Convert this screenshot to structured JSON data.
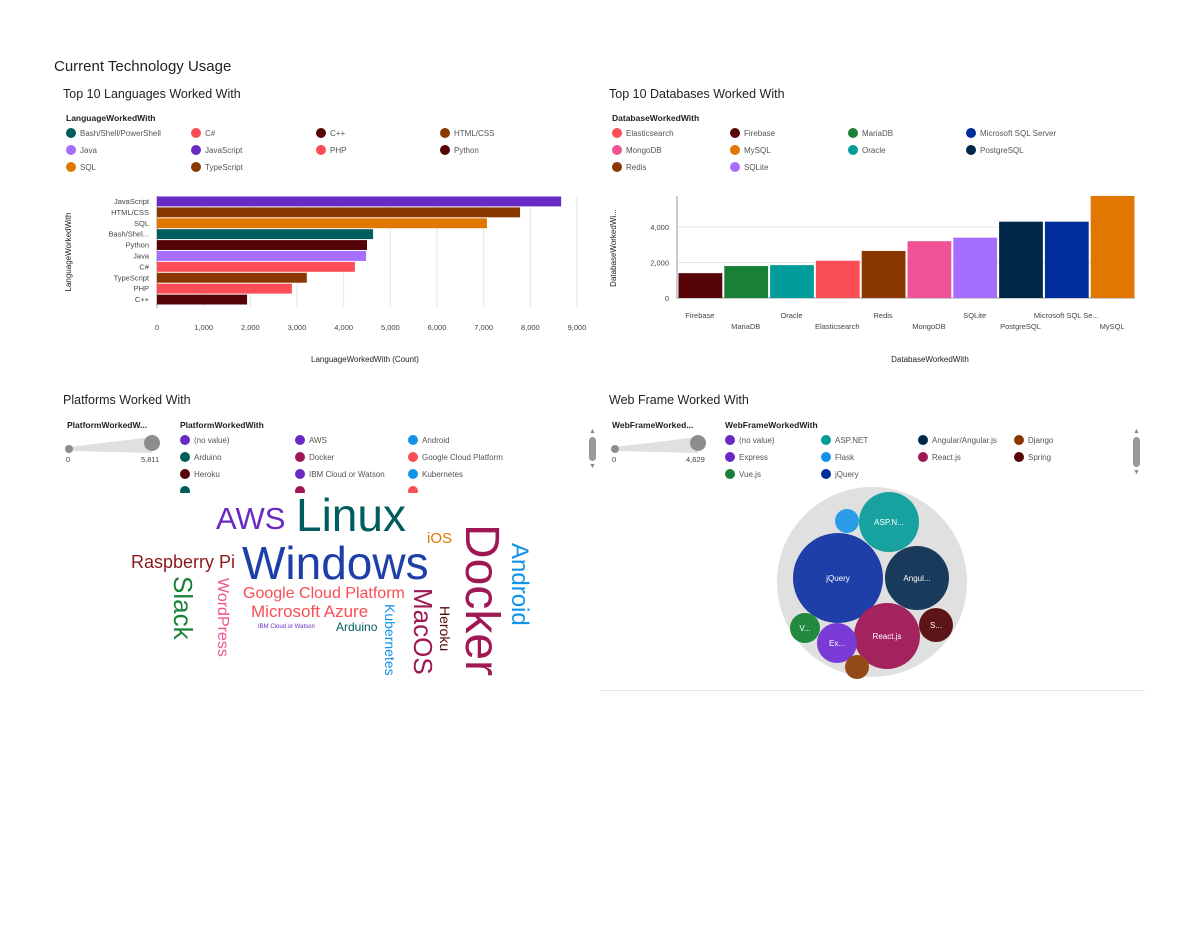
{
  "page_title": "Current Technology Usage",
  "languages": {
    "title": "Top 10 Languages Worked With",
    "legend_title": "LanguageWorkedWith",
    "legend": [
      {
        "label": "Bash/Shell/PowerShell",
        "color": "#005d5d"
      },
      {
        "label": "C#",
        "color": "#fa4d56"
      },
      {
        "label": "C++",
        "color": "#570408"
      },
      {
        "label": "HTML/CSS",
        "color": "#8a3800"
      },
      {
        "label": "Java",
        "color": "#a56eff"
      },
      {
        "label": "JavaScript",
        "color": "#6929c4"
      },
      {
        "label": "PHP",
        "color": "#fa4d56"
      },
      {
        "label": "Python",
        "color": "#570408"
      },
      {
        "label": "SQL",
        "color": "#e07700"
      },
      {
        "label": "TypeScript",
        "color": "#8a3800"
      }
    ]
  },
  "databases": {
    "title": "Top 10 Databases Worked With",
    "legend_title": "DatabaseWorkedWith",
    "legend": [
      {
        "label": "Elasticsearch",
        "color": "#fa4d56"
      },
      {
        "label": "Firebase",
        "color": "#570408"
      },
      {
        "label": "MariaDB",
        "color": "#198038"
      },
      {
        "label": "Microsoft SQL Server",
        "color": "#002d9c"
      },
      {
        "label": "MongoDB",
        "color": "#ee5396"
      },
      {
        "label": "MySQL",
        "color": "#e07700"
      },
      {
        "label": "Oracle",
        "color": "#009d9a"
      },
      {
        "label": "PostgreSQL",
        "color": "#012749"
      },
      {
        "label": "Redis",
        "color": "#8a3800"
      },
      {
        "label": "SQLite",
        "color": "#a56eff"
      }
    ]
  },
  "platforms": {
    "title": "Platforms Worked With",
    "size_title": "PlatformWorkedW...",
    "size_min": "0",
    "size_max": "5,811",
    "legend_title": "PlatformWorkedWith",
    "legend": [
      {
        "label": "(no value)",
        "color": "#6929c4"
      },
      {
        "label": "AWS",
        "color": "#6929c4"
      },
      {
        "label": "Android",
        "color": "#1192e8"
      },
      {
        "label": "Arduino",
        "color": "#005d5d"
      },
      {
        "label": "Docker",
        "color": "#9f1853"
      },
      {
        "label": "Google Cloud Platform",
        "color": "#fa4d56"
      },
      {
        "label": "Heroku",
        "color": "#570408"
      },
      {
        "label": "IBM Cloud or Watson",
        "color": "#6929c4"
      },
      {
        "label": "Kubernetes",
        "color": "#1192e8"
      }
    ],
    "words": [
      {
        "text": "AWS",
        "color": "#6929c4"
      },
      {
        "text": "Linux",
        "color": "#005d5d"
      },
      {
        "text": "Windows",
        "color": "#1f3fa8"
      },
      {
        "text": "iOS",
        "color": "#e07700"
      },
      {
        "text": "Docker",
        "color": "#9f1853"
      },
      {
        "text": "Android",
        "color": "#1192e8"
      },
      {
        "text": "Raspberry Pi",
        "color": "#8a1a1a"
      },
      {
        "text": "Slack",
        "color": "#198038"
      },
      {
        "text": "WordPress",
        "color": "#ee5396"
      },
      {
        "text": "Google Cloud Platform",
        "color": "#fa4d56"
      },
      {
        "text": "Microsoft Azure",
        "color": "#fa4d56"
      },
      {
        "text": "IBM Cloud or Watson",
        "color": "#6929c4"
      },
      {
        "text": "Arduino",
        "color": "#005d5d"
      },
      {
        "text": "Kubernetes",
        "color": "#1192e8"
      },
      {
        "text": "MacOS",
        "color": "#9f1853"
      },
      {
        "text": "Heroku",
        "color": "#570408"
      }
    ]
  },
  "webframes": {
    "title": "Web Frame Worked With",
    "size_title": "WebFrameWorked...",
    "size_min": "0",
    "size_max": "4,629",
    "legend_title": "WebFrameWorkedWith",
    "legend": [
      {
        "label": "(no value)",
        "color": "#6929c4"
      },
      {
        "label": "ASP.NET",
        "color": "#009d9a"
      },
      {
        "label": "Angular/Angular.js",
        "color": "#012749"
      },
      {
        "label": "Django",
        "color": "#8a3800"
      },
      {
        "label": "Express",
        "color": "#6929c4"
      },
      {
        "label": "Flask",
        "color": "#1192e8"
      },
      {
        "label": "React.js",
        "color": "#9f1853"
      },
      {
        "label": "Spring",
        "color": "#570408"
      },
      {
        "label": "Vue.js",
        "color": "#198038"
      },
      {
        "label": "jQuery",
        "color": "#002d9c"
      }
    ],
    "bubbles": [
      {
        "label": "jQuery",
        "color": "#1f3fa8"
      },
      {
        "label": "ASP.N...",
        "color": "#17a2a0"
      },
      {
        "label": "Angul...",
        "color": "#1a3a5c"
      },
      {
        "label": "React.js",
        "color": "#a3235f"
      },
      {
        "label": "S...",
        "color": "#5c1418"
      },
      {
        "label": "Ex...",
        "color": "#7a3ad6"
      },
      {
        "label": "V...",
        "color": "#218a3e"
      },
      {
        "label": "",
        "color": "#2b9de8"
      },
      {
        "label": "",
        "color": "#944a16"
      }
    ]
  },
  "chart_data": [
    {
      "type": "bar",
      "orientation": "horizontal",
      "title": "Top 10 Languages Worked With",
      "xlabel": "LanguageWorkedWith (Count)",
      "ylabel": "LanguageWorkedWith",
      "xlim": [
        0,
        9000
      ],
      "xticks": [
        "0",
        "1,000",
        "2,000",
        "3,000",
        "4,000",
        "5,000",
        "6,000",
        "7,000",
        "8,000",
        "9,000"
      ],
      "grid": true,
      "categories": [
        "JavaScript",
        "HTML/CSS",
        "SQL",
        "Bash/Shel...",
        "Python",
        "Java",
        "C#",
        "TypeScript",
        "PHP",
        "C++"
      ],
      "values": [
        8660,
        7780,
        7070,
        4630,
        4500,
        4480,
        4240,
        3210,
        2890,
        1930
      ],
      "colors": [
        "#6929c4",
        "#8a3800",
        "#e07700",
        "#005d5d",
        "#570408",
        "#a56eff",
        "#fa4d56",
        "#8a3800",
        "#fa4d56",
        "#570408"
      ]
    },
    {
      "type": "bar",
      "orientation": "vertical",
      "title": "Top 10 Databases Worked With",
      "xlabel": "DatabaseWorkedWith",
      "ylabel": "DatabaseWorkedWi...",
      "ylim": [
        0,
        5800
      ],
      "yticks": [
        "0",
        "2,000",
        "4,000"
      ],
      "grid": true,
      "categories": [
        "Firebase",
        "MariaDB",
        "Oracle",
        "Elasticsearch",
        "Redis",
        "MongoDB",
        "SQLite",
        "PostgreSQL",
        "Microsoft SQL Se...",
        "MySQL"
      ],
      "values": [
        1400,
        1800,
        1850,
        2100,
        2650,
        3200,
        3400,
        4300,
        4300,
        5750
      ],
      "colors": [
        "#570408",
        "#198038",
        "#009d9a",
        "#fa4d56",
        "#8a3800",
        "#ee5396",
        "#a56eff",
        "#012749",
        "#002d9c",
        "#e07700"
      ]
    }
  ]
}
